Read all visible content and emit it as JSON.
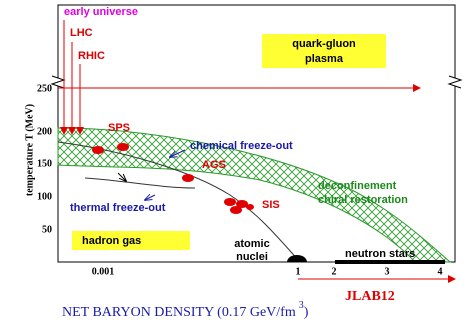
{
  "y_axis": {
    "label": "temperature T (MeV)",
    "ticks": [
      "250",
      "200",
      "150",
      "100",
      "50"
    ]
  },
  "x_axis": {
    "label": "NET BARYON DENSITY (0.17 GeV/fm",
    "label_superscript": "3",
    "label_end": ")",
    "ticks": [
      "0.001",
      "1",
      "2",
      "3",
      "4"
    ]
  },
  "labels": {
    "early_universe": "early universe",
    "lhc": "LHC",
    "rhic": "RHIC",
    "sps": "SPS",
    "ags": "AGS",
    "sis": "SIS",
    "chemical_freeze_out": "chemical freeze-out",
    "thermal_freeze_out": "thermal freeze-out",
    "deconfinement": [
      "deconfinement",
      "chiral restoration"
    ],
    "quark_gluon_plasma": [
      "quark-gluon",
      "plasma"
    ],
    "hadron_gas": "hadron gas",
    "atomic_nuclei": [
      "atomic",
      "nuclei"
    ],
    "neutron_stars": "neutron stars",
    "jlab12": "JLAB12"
  }
}
